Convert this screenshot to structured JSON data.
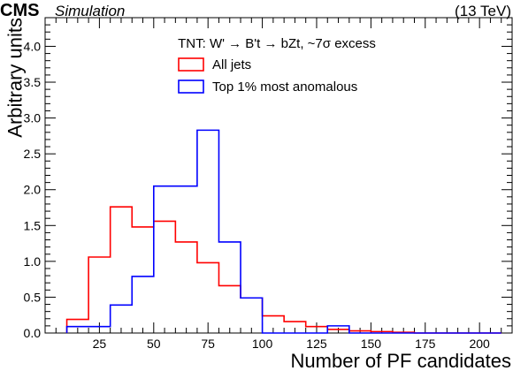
{
  "header": {
    "experiment": "CMS",
    "qualifier": "Simulation",
    "energy": "(13 TeV)"
  },
  "legend": {
    "title": "TNT: W' → B't → bZt, ~7σ excess",
    "position": "top-center"
  },
  "chart_data": {
    "type": "histogram",
    "xlabel": "Number of PF candidates",
    "ylabel": "Arbitrary units",
    "xlim": [
      0,
      215
    ],
    "ylim": [
      0,
      4.4
    ],
    "grid": false,
    "legend_position": "top-center",
    "xticks": [
      25,
      50,
      75,
      100,
      125,
      150,
      175,
      200
    ],
    "yticks": [
      0.0,
      0.5,
      1.0,
      1.5,
      2.0,
      2.5,
      3.0,
      3.5,
      4.0
    ],
    "bin_edges": [
      10,
      20,
      30,
      40,
      50,
      60,
      70,
      80,
      90,
      100,
      110,
      120,
      130,
      140,
      150,
      160,
      170,
      180,
      190,
      200,
      210
    ],
    "series": [
      {
        "name": "All jets",
        "color": "#ff0000",
        "values": [
          0.19,
          1.06,
          1.76,
          1.48,
          1.56,
          1.27,
          0.98,
          0.66,
          0.49,
          0.24,
          0.16,
          0.09,
          0.05,
          0.03,
          0.02,
          0.01,
          0.0,
          0.0,
          0.0,
          0.0
        ]
      },
      {
        "name": "Top 1% most anomalous",
        "color": "#0000ff",
        "values": [
          0.09,
          0.09,
          0.39,
          0.79,
          2.05,
          2.05,
          2.83,
          1.27,
          0.49,
          0.0,
          0.0,
          0.0,
          0.1,
          0.0,
          0.0,
          0.0,
          0.0,
          0.0,
          0.0,
          0.0
        ]
      }
    ]
  }
}
